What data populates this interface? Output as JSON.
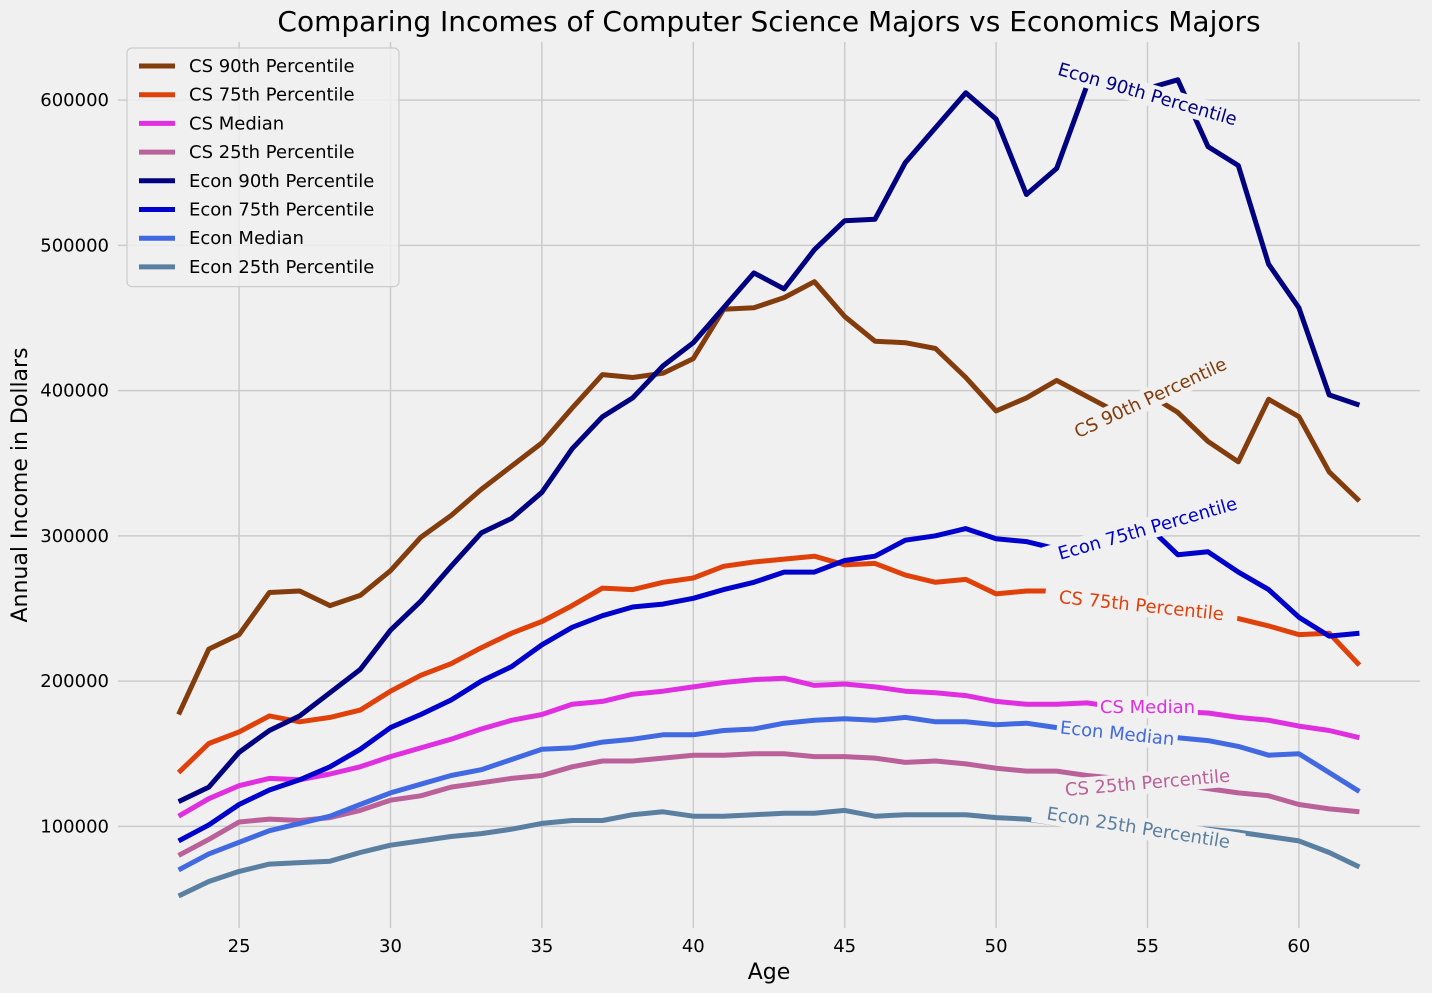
{
  "chart_data": {
    "type": "line",
    "title": "Comparing Incomes of Computer Science Majors vs Economics Majors",
    "xlabel": "Age",
    "ylabel": "Annual Income in Dollars",
    "xlim": [
      21,
      64
    ],
    "ylim": [
      30000,
      640000
    ],
    "xticks": [
      25,
      30,
      35,
      40,
      45,
      50,
      55,
      60
    ],
    "yticks": [
      100000,
      200000,
      300000,
      400000,
      500000,
      600000
    ],
    "grid": true,
    "legend_position": "top-left",
    "x": [
      23,
      24,
      25,
      26,
      27,
      28,
      29,
      30,
      31,
      32,
      33,
      34,
      35,
      36,
      37,
      38,
      39,
      40,
      41,
      42,
      43,
      44,
      45,
      46,
      47,
      48,
      49,
      50,
      51,
      52,
      53,
      54,
      55,
      56,
      57,
      58,
      59,
      60,
      61,
      62
    ],
    "series": [
      {
        "name": "CS 90th Percentile",
        "color": "#833C0C",
        "inline_label": "CS 90th Percentile",
        "label_x": 55.1,
        "label_y": 395000,
        "label_angle": -25,
        "values": [
          177000,
          222000,
          232000,
          261000,
          262000,
          252000,
          259000,
          276000,
          299000,
          314000,
          332000,
          348000,
          364000,
          388000,
          411000,
          409000,
          412000,
          422000,
          456000,
          457000,
          464000,
          475000,
          451000,
          434000,
          433000,
          429000,
          409000,
          386000,
          395000,
          407000,
          396000,
          385000,
          398000,
          385000,
          365000,
          351000,
          394000,
          382000,
          344000,
          324000
        ]
      },
      {
        "name": "CS 75th Percentile",
        "color": "#E0400A",
        "inline_label": "CS 75th Percentile",
        "label_x": 54.8,
        "label_y": 252000,
        "label_angle": 6,
        "values": [
          137000,
          157000,
          165000,
          176000,
          172000,
          175000,
          180000,
          193000,
          204000,
          212000,
          223000,
          233000,
          241000,
          252000,
          264000,
          263000,
          268000,
          271000,
          279000,
          282000,
          284000,
          286000,
          280000,
          281000,
          273000,
          268000,
          270000,
          260000,
          262000,
          262000,
          256000,
          252000,
          250000,
          248000,
          246000,
          243000,
          238000,
          232000,
          233000,
          211000
        ]
      },
      {
        "name": "CS Median",
        "color": "#E02FE0",
        "inline_label": "CS Median",
        "label_x": 55.0,
        "label_y": 182000,
        "label_angle": 0,
        "values": [
          107000,
          119000,
          128000,
          133000,
          132000,
          136000,
          141000,
          148000,
          154000,
          160000,
          167000,
          173000,
          177000,
          184000,
          186000,
          191000,
          193000,
          196000,
          199000,
          201000,
          202000,
          197000,
          198000,
          196000,
          193000,
          192000,
          190000,
          186000,
          184000,
          184000,
          185000,
          182000,
          180000,
          179000,
          178000,
          175000,
          173000,
          169000,
          166000,
          161000
        ]
      },
      {
        "name": "CS 25th Percentile",
        "color": "#BA6199",
        "inline_label": "CS 25th Percentile",
        "label_x": 55.0,
        "label_y": 130000,
        "label_angle": -5,
        "values": [
          80000,
          91000,
          103000,
          105000,
          104000,
          106000,
          111000,
          118000,
          121000,
          127000,
          130000,
          133000,
          135000,
          141000,
          145000,
          145000,
          147000,
          149000,
          149000,
          150000,
          150000,
          148000,
          148000,
          147000,
          144000,
          145000,
          143000,
          140000,
          138000,
          138000,
          135000,
          133000,
          131000,
          129000,
          126000,
          123000,
          121000,
          115000,
          112000,
          110000
        ]
      },
      {
        "name": "Econ 90th Percentile",
        "color": "#000080",
        "inline_label": "Econ 90th Percentile",
        "label_x": 55.0,
        "label_y": 604000,
        "label_angle": 16,
        "values": [
          117000,
          127000,
          151000,
          166000,
          176000,
          192000,
          208000,
          235000,
          255000,
          279000,
          302000,
          312000,
          330000,
          360000,
          382000,
          395000,
          417000,
          433000,
          457000,
          481000,
          470000,
          497000,
          517000,
          518000,
          557000,
          581000,
          605000,
          587000,
          535000,
          553000,
          610000,
          614000,
          608000,
          614000,
          568000,
          555000,
          487000,
          457000,
          397000,
          390000
        ]
      },
      {
        "name": "Econ 75th Percentile",
        "color": "#0000CD",
        "inline_label": "Econ 75th Percentile",
        "label_x": 55.0,
        "label_y": 305000,
        "label_angle": -16,
        "values": [
          90000,
          101000,
          115000,
          125000,
          132000,
          141000,
          153000,
          168000,
          177000,
          187000,
          200000,
          210000,
          225000,
          237000,
          245000,
          251000,
          253000,
          257000,
          263000,
          268000,
          275000,
          275000,
          283000,
          286000,
          297000,
          300000,
          305000,
          298000,
          296000,
          291000,
          298000,
          305000,
          307000,
          287000,
          289000,
          275000,
          263000,
          244000,
          231000,
          233000
        ]
      },
      {
        "name": "Econ Median",
        "color": "#4169E1",
        "inline_label": "Econ Median",
        "label_x": 54.0,
        "label_y": 164000,
        "label_angle": 6,
        "values": [
          70000,
          81000,
          89000,
          97000,
          102000,
          107000,
          115000,
          123000,
          129000,
          135000,
          139000,
          146000,
          153000,
          154000,
          158000,
          160000,
          163000,
          163000,
          166000,
          167000,
          171000,
          173000,
          174000,
          173000,
          175000,
          172000,
          172000,
          170000,
          171000,
          168000,
          166000,
          165000,
          163000,
          161000,
          159000,
          155000,
          149000,
          150000,
          137000,
          124000
        ]
      },
      {
        "name": "Econ 25th Percentile",
        "color": "#5A7FA0",
        "inline_label": "Econ 25th Percentile",
        "label_x": 54.7,
        "label_y": 99000,
        "label_angle": 9,
        "values": [
          52000,
          62000,
          69000,
          74000,
          75000,
          76000,
          82000,
          87000,
          90000,
          93000,
          95000,
          98000,
          102000,
          104000,
          104000,
          108000,
          110000,
          107000,
          107000,
          108000,
          109000,
          109000,
          111000,
          107000,
          108000,
          108000,
          108000,
          106000,
          105000,
          102000,
          103000,
          102000,
          100000,
          99000,
          98000,
          96000,
          93000,
          90000,
          82000,
          72000
        ]
      }
    ]
  }
}
